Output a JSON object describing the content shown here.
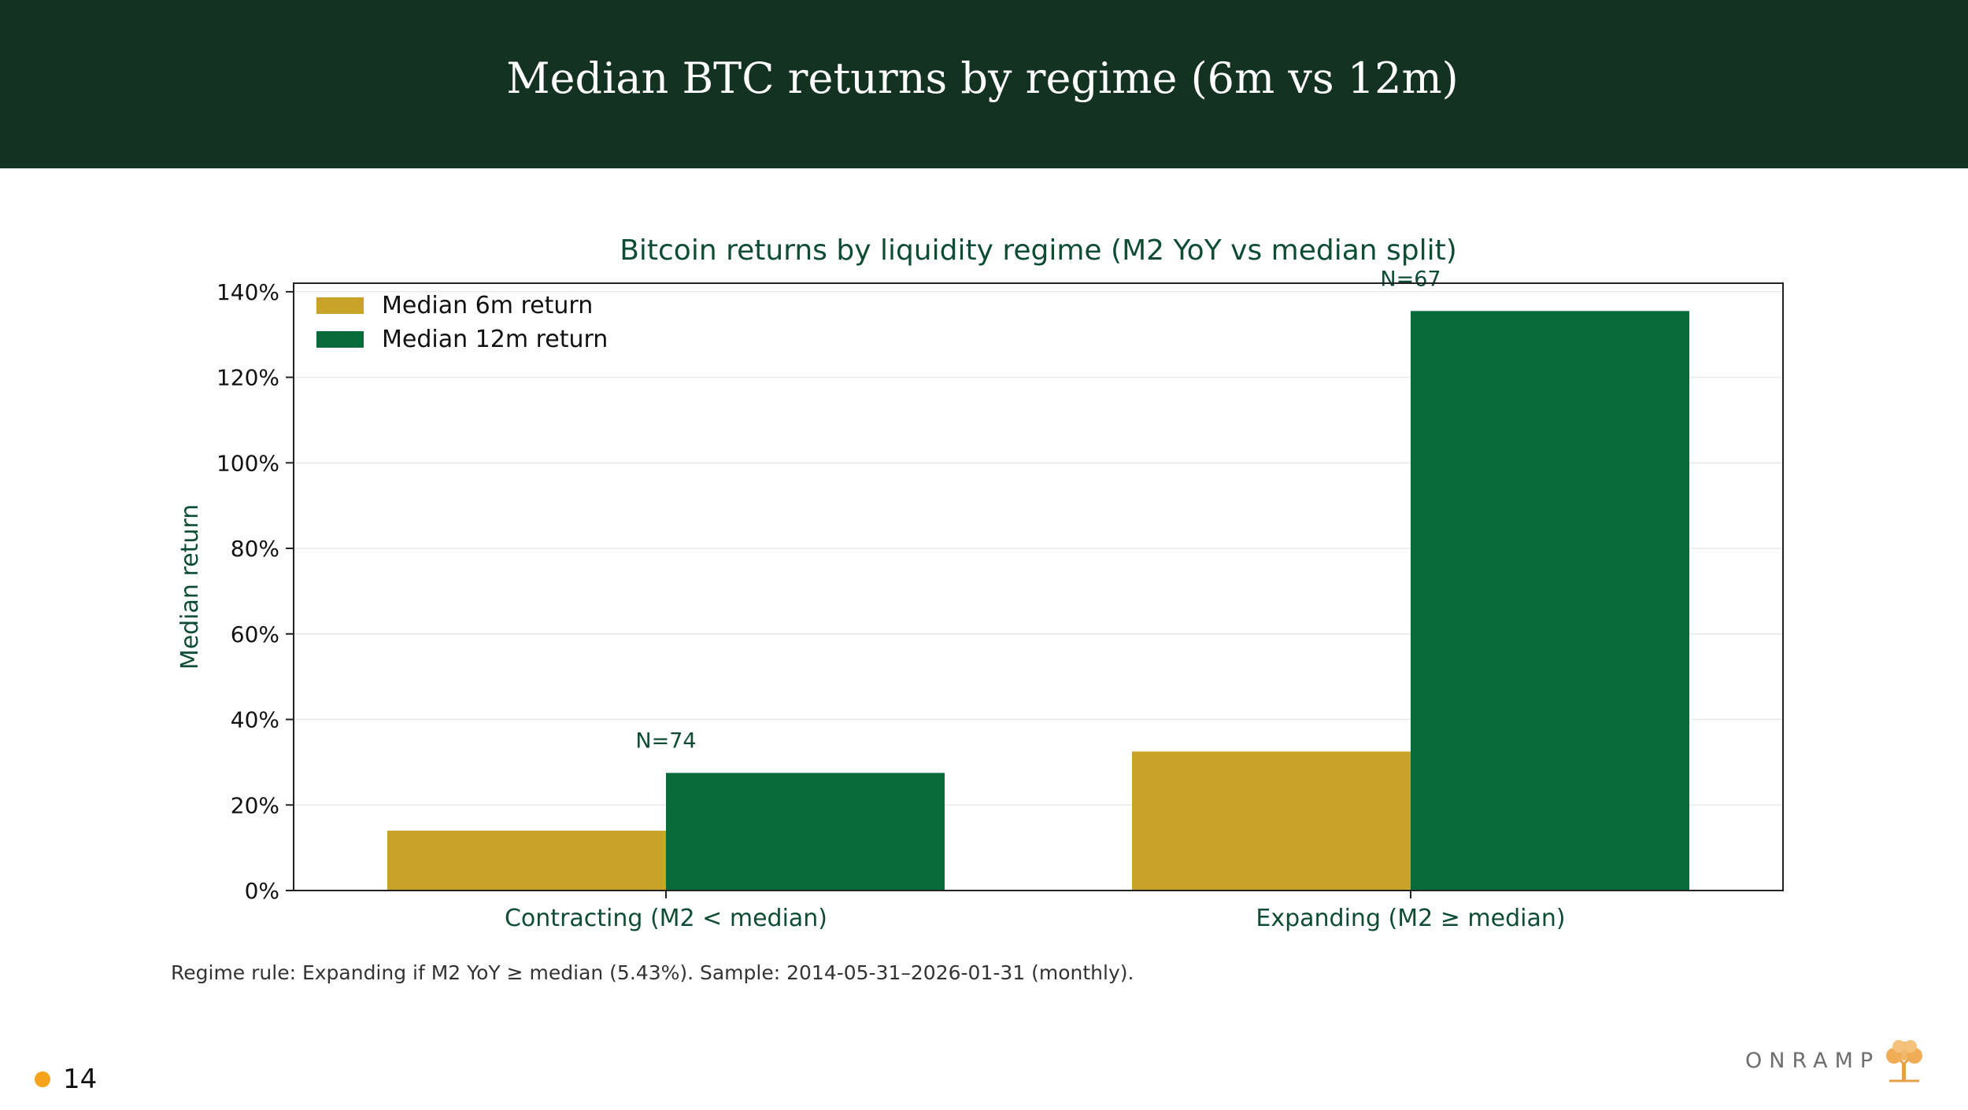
{
  "header": {
    "title": "Median BTC returns by regime (6m vs 12m)"
  },
  "chart_data": {
    "type": "bar",
    "title": "Bitcoin returns by liquidity regime (M2 YoY vs median split)",
    "xlabel": "",
    "ylabel": "Median return",
    "categories": [
      "Contracting (M2 < median)",
      "Expanding (M2 ≥ median)"
    ],
    "series": [
      {
        "name": "Median 6m return",
        "values": [
          14,
          32.5
        ],
        "color": "#c9a22a"
      },
      {
        "name": "Median 12m return",
        "values": [
          27.5,
          135.5
        ],
        "color": "#066b38"
      }
    ],
    "annotations": [
      "N=74",
      "N=67"
    ],
    "ylim": [
      0,
      142
    ],
    "yticks": [
      "0%",
      "20%",
      "40%",
      "60%",
      "80%",
      "100%",
      "120%",
      "140%"
    ],
    "grid": true,
    "legend": "top-left"
  },
  "footnote": "Regime rule: Expanding if M2 YoY ≥ median (5.43%). Sample: 2014-05-31–2026-01-31 (monthly).",
  "page": {
    "number": "14"
  },
  "brand": {
    "name": "ONRAMP",
    "icon": "tree-icon"
  },
  "colors": {
    "header_bg": "#133222",
    "accent_green": "#0e4d33",
    "page_dot": "#f5a31a"
  }
}
